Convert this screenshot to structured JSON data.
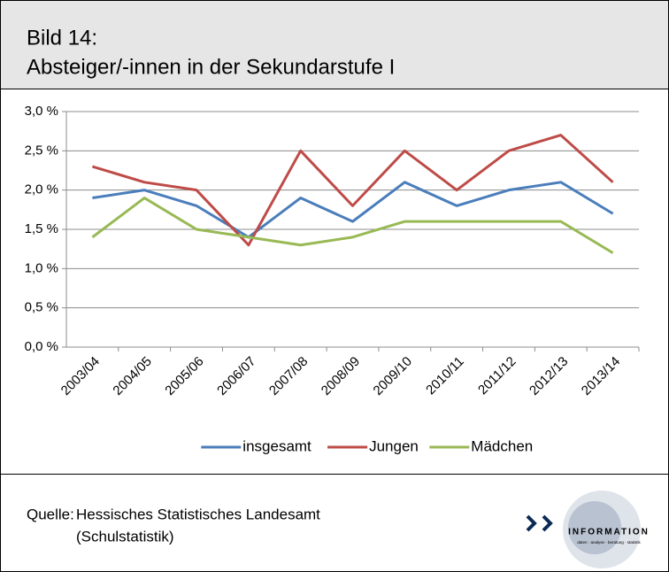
{
  "chart_data": {
    "type": "line",
    "title": "Bild 14:",
    "subtitle": "Absteiger/-innen in der Sekundarstufe I",
    "categories": [
      "2003/04",
      "2004/05",
      "2005/06",
      "2006/07",
      "2007/08",
      "2008/09",
      "2009/10",
      "2010/11",
      "2011/12",
      "2012/13",
      "2013/14"
    ],
    "series": [
      {
        "name": "insgesamt",
        "color": "#4a7ebb",
        "values": [
          1.9,
          2.0,
          1.8,
          1.4,
          1.9,
          1.6,
          2.1,
          1.8,
          2.0,
          2.1,
          1.7
        ]
      },
      {
        "name": "Jungen",
        "color": "#be4b48",
        "values": [
          2.3,
          2.1,
          2.0,
          1.3,
          2.5,
          1.8,
          2.5,
          2.0,
          2.5,
          2.7,
          2.1
        ]
      },
      {
        "name": "Mädchen",
        "color": "#98b954",
        "values": [
          1.4,
          1.9,
          1.5,
          1.4,
          1.3,
          1.4,
          1.6,
          1.6,
          1.6,
          1.6,
          1.2
        ]
      }
    ],
    "ylim": [
      0,
      3
    ],
    "yticks": [
      {
        "value": 0,
        "label": "0,0 %"
      },
      {
        "value": 0.5,
        "label": "0,5 %"
      },
      {
        "value": 1,
        "label": "1,0 %"
      },
      {
        "value": 1.5,
        "label": "1,5 %"
      },
      {
        "value": 2,
        "label": "2,0 %"
      },
      {
        "value": 2.5,
        "label": "2,5 %"
      },
      {
        "value": 3,
        "label": "3,0 %"
      }
    ],
    "grid": true,
    "legend": "bottom"
  },
  "footer": {
    "source_label": "Quelle:",
    "source_lines": [
      "Hessisches Statistisches Landesamt",
      "(Schulstatistik)"
    ],
    "logo_text": "INFORMATION",
    "logo_tagline": "daten · analyse · beratung · statistik"
  }
}
